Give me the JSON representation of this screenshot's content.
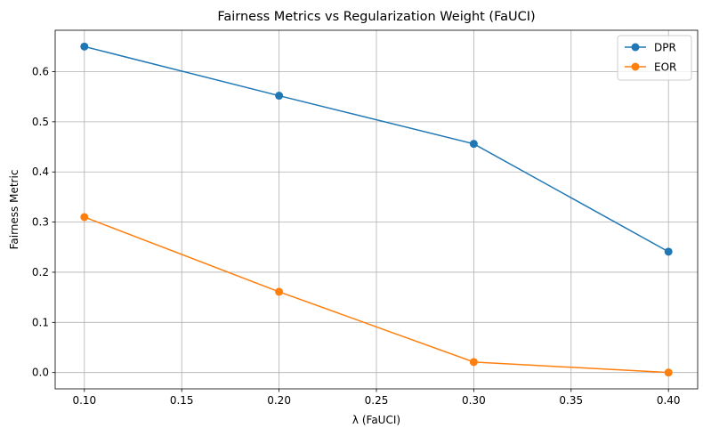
{
  "chart_data": {
    "type": "line",
    "title": "Fairness Metrics vs Regularization Weight (FaUCI)",
    "xlabel": "λ (FaUCI)",
    "ylabel": "Fairness Metric",
    "x": [
      0.1,
      0.2,
      0.3,
      0.4
    ],
    "xlim": [
      0.085,
      0.415
    ],
    "ylim": [
      -0.0325,
      0.6825
    ],
    "xticks": [
      0.1,
      0.15,
      0.2,
      0.25,
      0.3,
      0.35,
      0.4
    ],
    "xtick_labels": [
      "0.10",
      "0.15",
      "0.20",
      "0.25",
      "0.30",
      "0.35",
      "0.40"
    ],
    "yticks": [
      0.0,
      0.1,
      0.2,
      0.3,
      0.4,
      0.5,
      0.6
    ],
    "ytick_labels": [
      "0.0",
      "0.1",
      "0.2",
      "0.3",
      "0.4",
      "0.5",
      "0.6"
    ],
    "grid": true,
    "legend_position": "top-right",
    "series": [
      {
        "name": "DPR",
        "values": [
          0.65,
          0.552,
          0.456,
          0.241
        ],
        "color": "#1f77b4",
        "marker": "circle"
      },
      {
        "name": "EOR",
        "values": [
          0.31,
          0.161,
          0.021,
          0.0
        ],
        "color": "#ff7f0e",
        "marker": "circle"
      }
    ]
  }
}
